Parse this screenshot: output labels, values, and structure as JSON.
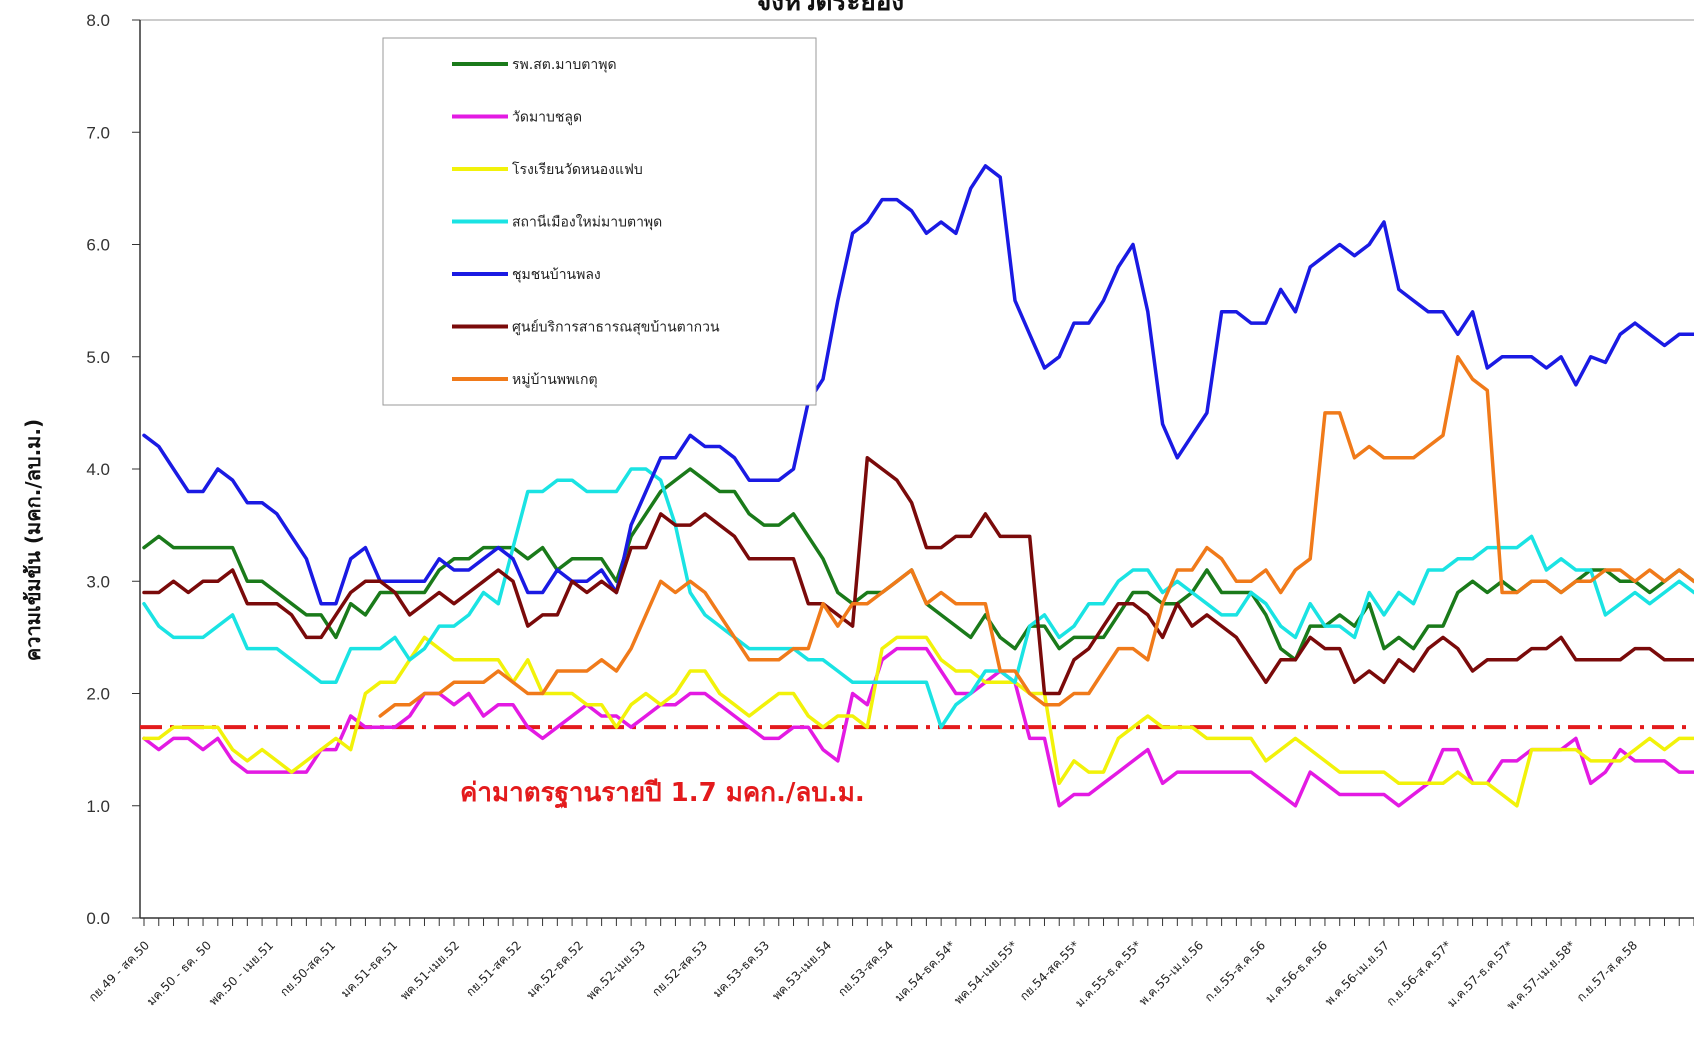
{
  "chart_data": {
    "type": "line",
    "title": "จังหวัดระยอง",
    "ylabel": "ความเข้มข้น (มคก./ลบ.ม.)",
    "xlabel": "",
    "ylim": [
      0,
      8
    ],
    "yticks": [
      "0.0",
      "1.0",
      "2.0",
      "3.0",
      "4.0",
      "5.0",
      "6.0",
      "7.0",
      "8.0"
    ],
    "grid": false,
    "legend_position": "top-left",
    "x_tick_labels": [
      "กย.49 - สค.50",
      "มค.50 - ธค. 50",
      "พค.50 - เมย.51",
      "กย.50-สค.51",
      "มค.51-ธค.51",
      "พค.51-เมย.52",
      "กย.51-สค.52",
      "มค.52-ธค.52",
      "พค.52-เมย.53",
      "กย.52-สค.53",
      "มค.53-ธค.53",
      "พค.53-เมย.54",
      "กย.53-สค.54",
      "มค.54-ธค.54*",
      "พค.54-เมย.55*",
      "กย.54-สค.55*",
      "ม.ค.55-ธ.ค.55*",
      "พ.ค.55-เม.ย.56",
      "ก.ย.55-ส.ค.56",
      "ม.ค.56-ธ.ค.56",
      "พ.ค.56-เม.ย.57",
      "ก.ย.56-ส.ค.57*",
      "ม.ค.57-ธ.ค.57*",
      "พ.ค.57-เม.ย.58*",
      "ก.ย.57-ส.ค.58"
    ],
    "standard_line": {
      "value": 1.7,
      "label": "ค่ามาตรฐานรายปี 1.7 มคก./ลบ.ม.",
      "color": "#e31a1c"
    },
    "series": [
      {
        "name": "รพ.สต.มาบตาพุด",
        "color": "#1a7a1a",
        "values": [
          3.3,
          3.4,
          3.3,
          3.3,
          3.3,
          3.3,
          3.3,
          3.0,
          3.0,
          2.9,
          2.8,
          2.7,
          2.7,
          2.5,
          2.8,
          2.7,
          2.9,
          2.9,
          2.9,
          2.9,
          3.1,
          3.2,
          3.2,
          3.3,
          3.3,
          3.3,
          3.2,
          3.3,
          3.1,
          3.2,
          3.2,
          3.2,
          3.0,
          3.4,
          3.6,
          3.8,
          3.9,
          4.0,
          3.9,
          3.8,
          3.8,
          3.6,
          3.5,
          3.5,
          3.6,
          3.4,
          3.2,
          2.9,
          2.8,
          2.9,
          2.9,
          3.0,
          3.1,
          2.8,
          2.7,
          2.6,
          2.5,
          2.7,
          2.5,
          2.4,
          2.6,
          2.6,
          2.4,
          2.5,
          2.5,
          2.5,
          2.7,
          2.9,
          2.9,
          2.8,
          2.8,
          2.9,
          3.1,
          2.9,
          2.9,
          2.9,
          2.7,
          2.4,
          2.3,
          2.6,
          2.6,
          2.7,
          2.6,
          2.8,
          2.4,
          2.5,
          2.4,
          2.6,
          2.6,
          2.9,
          3.0,
          2.9,
          3.0,
          2.9,
          3.0,
          3.0,
          2.9,
          3.0,
          3.1,
          3.1,
          3.0,
          3.0,
          2.9,
          3.0,
          3.1,
          3.0
        ]
      },
      {
        "name": "วัดมาบชลูด",
        "color": "#e31ae3",
        "values": [
          1.6,
          1.5,
          1.6,
          1.6,
          1.5,
          1.6,
          1.4,
          1.3,
          1.3,
          1.3,
          1.3,
          1.3,
          1.5,
          1.5,
          1.8,
          1.7,
          1.7,
          1.7,
          1.8,
          2.0,
          2.0,
          1.9,
          2.0,
          1.8,
          1.9,
          1.9,
          1.7,
          1.6,
          1.7,
          1.8,
          1.9,
          1.8,
          1.8,
          1.7,
          1.8,
          1.9,
          1.9,
          2.0,
          2.0,
          1.9,
          1.8,
          1.7,
          1.6,
          1.6,
          1.7,
          1.7,
          1.5,
          1.4,
          2.0,
          1.9,
          2.3,
          2.4,
          2.4,
          2.4,
          2.2,
          2.0,
          2.0,
          2.1,
          2.2,
          2.1,
          1.6,
          1.6,
          1.0,
          1.1,
          1.1,
          1.2,
          1.3,
          1.4,
          1.5,
          1.2,
          1.3,
          1.3,
          1.3,
          1.3,
          1.3,
          1.3,
          1.2,
          1.1,
          1.0,
          1.3,
          1.2,
          1.1,
          1.1,
          1.1,
          1.1,
          1.0,
          1.1,
          1.2,
          1.5,
          1.5,
          1.2,
          1.2,
          1.4,
          1.4,
          1.5,
          1.5,
          1.5,
          1.6,
          1.2,
          1.3,
          1.5,
          1.4,
          1.4,
          1.4,
          1.3,
          1.3
        ]
      },
      {
        "name": "โรงเรียนวัดหนองแฟบ",
        "color": "#f2f20a",
        "values": [
          1.6,
          1.6,
          1.7,
          1.7,
          1.7,
          1.7,
          1.5,
          1.4,
          1.5,
          1.4,
          1.3,
          1.4,
          1.5,
          1.6,
          1.5,
          2.0,
          2.1,
          2.1,
          2.3,
          2.5,
          2.4,
          2.3,
          2.3,
          2.3,
          2.3,
          2.1,
          2.3,
          2.0,
          2.0,
          2.0,
          1.9,
          1.9,
          1.7,
          1.9,
          2.0,
          1.9,
          2.0,
          2.2,
          2.2,
          2.0,
          1.9,
          1.8,
          1.9,
          2.0,
          2.0,
          1.8,
          1.7,
          1.8,
          1.8,
          1.7,
          2.4,
          2.5,
          2.5,
          2.5,
          2.3,
          2.2,
          2.2,
          2.1,
          2.1,
          2.1,
          2.0,
          2.0,
          1.2,
          1.4,
          1.3,
          1.3,
          1.6,
          1.7,
          1.8,
          1.7,
          1.7,
          1.7,
          1.6,
          1.6,
          1.6,
          1.6,
          1.4,
          1.5,
          1.6,
          1.5,
          1.4,
          1.3,
          1.3,
          1.3,
          1.3,
          1.2,
          1.2,
          1.2,
          1.2,
          1.3,
          1.2,
          1.2,
          1.1,
          1.0,
          1.5,
          1.5,
          1.5,
          1.5,
          1.4,
          1.4,
          1.4,
          1.5,
          1.6,
          1.5,
          1.6,
          1.6
        ]
      },
      {
        "name": "สถานีเมืองใหม่มาบตาพุด",
        "color": "#1ae3e3",
        "values": [
          2.8,
          2.6,
          2.5,
          2.5,
          2.5,
          2.6,
          2.7,
          2.4,
          2.4,
          2.4,
          2.3,
          2.2,
          2.1,
          2.1,
          2.4,
          2.4,
          2.4,
          2.5,
          2.3,
          2.4,
          2.6,
          2.6,
          2.7,
          2.9,
          2.8,
          3.3,
          3.8,
          3.8,
          3.9,
          3.9,
          3.8,
          3.8,
          3.8,
          4.0,
          4.0,
          3.9,
          3.5,
          2.9,
          2.7,
          2.6,
          2.5,
          2.4,
          2.4,
          2.4,
          2.4,
          2.3,
          2.3,
          2.2,
          2.1,
          2.1,
          2.1,
          2.1,
          2.1,
          2.1,
          1.7,
          1.9,
          2.0,
          2.2,
          2.2,
          2.1,
          2.6,
          2.7,
          2.5,
          2.6,
          2.8,
          2.8,
          3.0,
          3.1,
          3.1,
          2.9,
          3.0,
          2.9,
          2.8,
          2.7,
          2.7,
          2.9,
          2.8,
          2.6,
          2.5,
          2.8,
          2.6,
          2.6,
          2.5,
          2.9,
          2.7,
          2.9,
          2.8,
          3.1,
          3.1,
          3.2,
          3.2,
          3.3,
          3.3,
          3.3,
          3.4,
          3.1,
          3.2,
          3.1,
          3.1,
          2.7,
          2.8,
          2.9,
          2.8,
          2.9,
          3.0,
          2.9
        ]
      },
      {
        "name": "ชุมชนบ้านพลง",
        "color": "#1a1ae3",
        "values": [
          4.3,
          4.2,
          4.0,
          3.8,
          3.8,
          4.0,
          3.9,
          3.7,
          3.7,
          3.6,
          3.4,
          3.2,
          2.8,
          2.8,
          3.2,
          3.3,
          3.0,
          3.0,
          3.0,
          3.0,
          3.2,
          3.1,
          3.1,
          3.2,
          3.3,
          3.2,
          2.9,
          2.9,
          3.1,
          3.0,
          3.0,
          3.1,
          2.9,
          3.5,
          3.8,
          4.1,
          4.1,
          4.3,
          4.2,
          4.2,
          4.1,
          3.9,
          3.9,
          3.9,
          4.0,
          4.6,
          4.8,
          5.5,
          6.1,
          6.2,
          6.4,
          6.4,
          6.3,
          6.1,
          6.2,
          6.1,
          6.5,
          6.7,
          6.6,
          5.5,
          5.2,
          4.9,
          5.0,
          5.3,
          5.3,
          5.5,
          5.8,
          6.0,
          5.4,
          4.4,
          4.1,
          4.3,
          4.5,
          5.4,
          5.4,
          5.3,
          5.3,
          5.6,
          5.4,
          5.8,
          5.9,
          6.0,
          5.9,
          6.0,
          6.2,
          5.6,
          5.5,
          5.4,
          5.4,
          5.2,
          5.4,
          4.9,
          5.0,
          5.0,
          5.0,
          4.9,
          5.0,
          4.75,
          5.0,
          4.95,
          5.2,
          5.3,
          5.2,
          5.1,
          5.2,
          5.2
        ]
      },
      {
        "name": "ศูนย์บริการสาธารณสุขบ้านตากวน",
        "color": "#7a0a0a",
        "values": [
          2.9,
          2.9,
          3.0,
          2.9,
          3.0,
          3.0,
          3.1,
          2.8,
          2.8,
          2.8,
          2.7,
          2.5,
          2.5,
          2.7,
          2.9,
          3.0,
          3.0,
          2.9,
          2.7,
          2.8,
          2.9,
          2.8,
          2.9,
          3.0,
          3.1,
          3.0,
          2.6,
          2.7,
          2.7,
          3.0,
          2.9,
          3.0,
          2.9,
          3.3,
          3.3,
          3.6,
          3.5,
          3.5,
          3.6,
          3.5,
          3.4,
          3.2,
          3.2,
          3.2,
          3.2,
          2.8,
          2.8,
          2.7,
          2.6,
          4.1,
          4.0,
          3.9,
          3.7,
          3.3,
          3.3,
          3.4,
          3.4,
          3.6,
          3.4,
          3.4,
          3.4,
          2.0,
          2.0,
          2.3,
          2.4,
          2.6,
          2.8,
          2.8,
          2.7,
          2.5,
          2.8,
          2.6,
          2.7,
          2.6,
          2.5,
          2.3,
          2.1,
          2.3,
          2.3,
          2.5,
          2.4,
          2.4,
          2.1,
          2.2,
          2.1,
          2.3,
          2.2,
          2.4,
          2.5,
          2.4,
          2.2,
          2.3,
          2.3,
          2.3,
          2.4,
          2.4,
          2.5,
          2.3,
          2.3,
          2.3,
          2.3,
          2.4,
          2.4,
          2.3,
          2.3,
          2.3
        ]
      },
      {
        "name": "หมู่บ้านพพเกตุ",
        "color": "#f07a1a",
        "values": [
          null,
          null,
          null,
          null,
          null,
          null,
          null,
          null,
          null,
          null,
          null,
          null,
          null,
          null,
          null,
          null,
          1.8,
          1.9,
          1.9,
          2.0,
          2.0,
          2.1,
          2.1,
          2.1,
          2.2,
          2.1,
          2.0,
          2.0,
          2.2,
          2.2,
          2.2,
          2.3,
          2.2,
          2.4,
          2.7,
          3.0,
          2.9,
          3.0,
          2.9,
          2.7,
          2.5,
          2.3,
          2.3,
          2.3,
          2.4,
          2.4,
          2.8,
          2.6,
          2.8,
          2.8,
          2.9,
          3.0,
          3.1,
          2.8,
          2.9,
          2.8,
          2.8,
          2.8,
          2.2,
          2.2,
          2.0,
          1.9,
          1.9,
          2.0,
          2.0,
          2.2,
          2.4,
          2.4,
          2.3,
          2.8,
          3.1,
          3.1,
          3.3,
          3.2,
          3.0,
          3.0,
          3.1,
          2.9,
          3.1,
          3.2,
          4.5,
          4.5,
          4.1,
          4.2,
          4.1,
          4.1,
          4.1,
          4.2,
          4.3,
          5.0,
          4.8,
          4.7,
          2.9,
          2.9,
          3.0,
          3.0,
          2.9,
          3.0,
          3.0,
          3.1,
          3.1,
          3.0,
          3.1,
          3.0,
          3.1,
          3.0
        ]
      }
    ]
  }
}
